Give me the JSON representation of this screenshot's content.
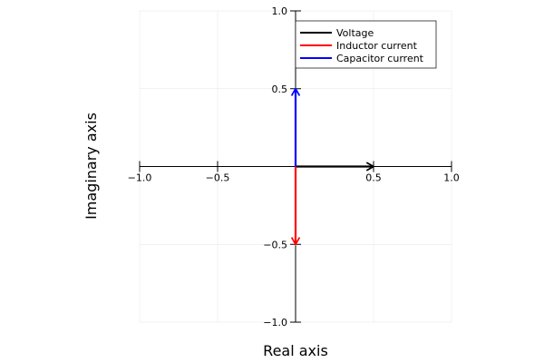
{
  "chart_data": {
    "type": "line",
    "title": "",
    "xlabel": "Real axis",
    "ylabel": "Imaginary axis",
    "xlim": [
      -1.0,
      1.0
    ],
    "ylim": [
      -1.0,
      1.0
    ],
    "x_ticks": [
      -1.0,
      -0.5,
      0.5,
      1.0
    ],
    "x_tick_labels": [
      "−1.0",
      "−0.5",
      "0.5",
      "1.0"
    ],
    "y_ticks": [
      -1.0,
      -0.5,
      0.5,
      1.0
    ],
    "y_tick_labels": [
      "−1.0",
      "−0.5",
      "0.5",
      "1.0"
    ],
    "grid": true,
    "legend_position": "top-right",
    "series": [
      {
        "name": "Voltage",
        "color": "#000000",
        "from": [
          0,
          0
        ],
        "to": [
          0.5,
          0
        ]
      },
      {
        "name": "Inductor current",
        "color": "#ff0000",
        "from": [
          0,
          0
        ],
        "to": [
          0,
          -0.5
        ]
      },
      {
        "name": "Capacitor current",
        "color": "#0000ff",
        "from": [
          0,
          0
        ],
        "to": [
          0,
          0.5
        ]
      }
    ]
  }
}
